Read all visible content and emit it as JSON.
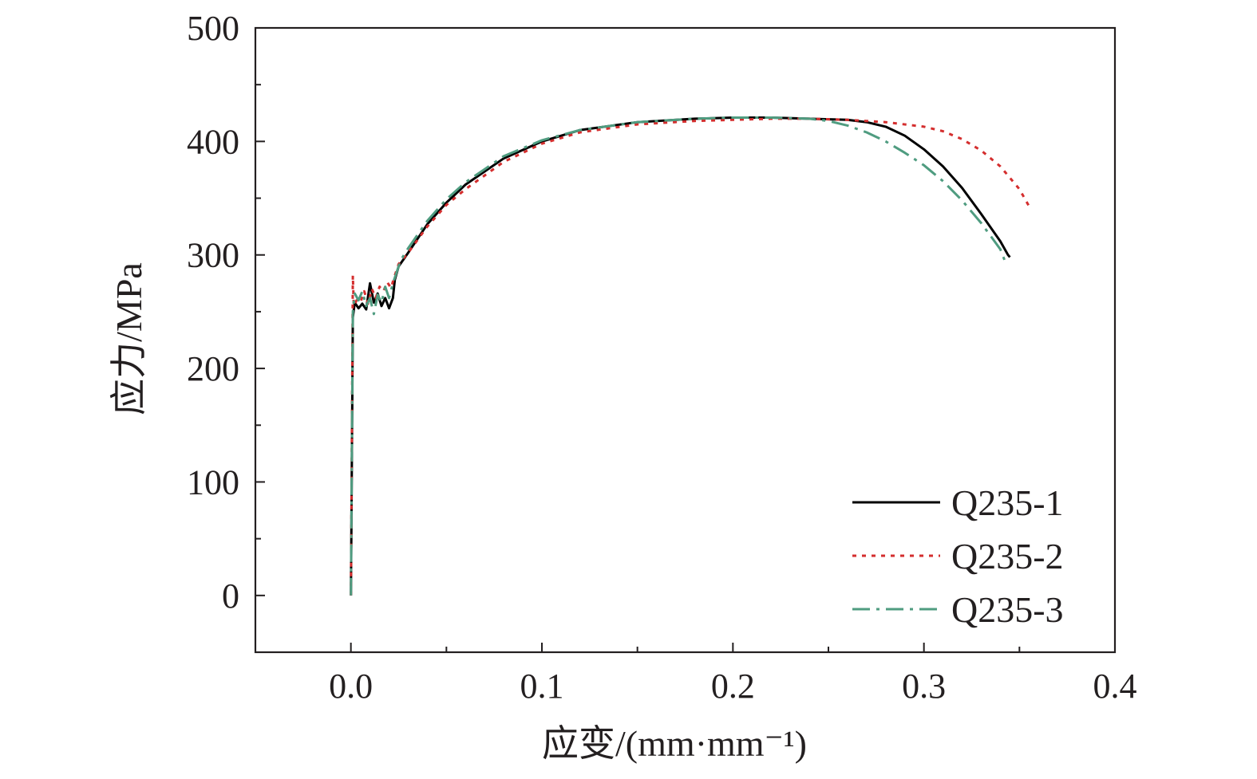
{
  "chart_data": {
    "type": "line",
    "xlabel": "应变/(mm·mm⁻¹)",
    "ylabel": "应力/MPa",
    "xlim": [
      -0.05,
      0.4
    ],
    "ylim": [
      -50,
      500
    ],
    "xticks": [
      0.0,
      0.1,
      0.2,
      0.3,
      0.4
    ],
    "xtick_labels": [
      "0.0",
      "0.1",
      "0.2",
      "0.3",
      "0.4"
    ],
    "yticks": [
      0,
      100,
      200,
      300,
      400,
      500
    ],
    "ytick_labels": [
      "0",
      "100",
      "200",
      "300",
      "400",
      "500"
    ],
    "grid": false,
    "legend_position": "bottom-right",
    "colors": {
      "axis": "#231f20",
      "text": "#231f20"
    },
    "series": [
      {
        "name": "Q235-1",
        "color": "#000000",
        "dash": "solid",
        "x": [
          0,
          0.0005,
          0.001,
          0.002,
          0.004,
          0.006,
          0.008,
          0.01,
          0.012,
          0.014,
          0.016,
          0.018,
          0.02,
          0.022,
          0.023,
          0.025,
          0.03,
          0.04,
          0.05,
          0.06,
          0.08,
          0.1,
          0.12,
          0.15,
          0.18,
          0.2,
          0.22,
          0.24,
          0.26,
          0.27,
          0.28,
          0.29,
          0.3,
          0.31,
          0.32,
          0.33,
          0.34,
          0.344,
          0.345
        ],
        "y": [
          0,
          120,
          245,
          258,
          253,
          257,
          252,
          275,
          258,
          266,
          255,
          262,
          253,
          262,
          278,
          290,
          302,
          327,
          346,
          362,
          385,
          400,
          410,
          417,
          420,
          421,
          421,
          420,
          419,
          417,
          413,
          405,
          393,
          378,
          359,
          336,
          312,
          300,
          298
        ]
      },
      {
        "name": "Q235-2",
        "color": "#d42e2e",
        "dash": "dotted",
        "x": [
          0,
          0.0005,
          0.001,
          0.0015,
          0.003,
          0.005,
          0.007,
          0.009,
          0.011,
          0.013,
          0.015,
          0.017,
          0.019,
          0.021,
          0.023,
          0.025,
          0.03,
          0.04,
          0.05,
          0.06,
          0.08,
          0.1,
          0.12,
          0.15,
          0.18,
          0.2,
          0.22,
          0.24,
          0.26,
          0.28,
          0.3,
          0.31,
          0.32,
          0.33,
          0.34,
          0.35,
          0.355
        ],
        "y": [
          0,
          140,
          282,
          255,
          260,
          258,
          268,
          257,
          270,
          262,
          272,
          268,
          276,
          271,
          282,
          292,
          302,
          325,
          344,
          358,
          382,
          398,
          408,
          415,
          418,
          419,
          420,
          420,
          419,
          417,
          413,
          409,
          402,
          392,
          378,
          358,
          343
        ]
      },
      {
        "name": "Q235-3",
        "color": "#4f9c80",
        "dash": "dashdot",
        "x": [
          0,
          0.0005,
          0.001,
          0.002,
          0.004,
          0.006,
          0.008,
          0.01,
          0.012,
          0.014,
          0.016,
          0.018,
          0.02,
          0.022,
          0.024,
          0.026,
          0.03,
          0.04,
          0.05,
          0.06,
          0.08,
          0.1,
          0.12,
          0.15,
          0.18,
          0.2,
          0.22,
          0.24,
          0.25,
          0.26,
          0.27,
          0.28,
          0.29,
          0.3,
          0.31,
          0.32,
          0.33,
          0.34,
          0.343
        ],
        "y": [
          0,
          130,
          250,
          266,
          260,
          268,
          255,
          262,
          248,
          265,
          258,
          272,
          262,
          275,
          285,
          295,
          306,
          330,
          349,
          364,
          387,
          401,
          410,
          417,
          420,
          421,
          421,
          420,
          418,
          414,
          408,
          400,
          390,
          379,
          365,
          348,
          328,
          305,
          292
        ]
      }
    ]
  }
}
